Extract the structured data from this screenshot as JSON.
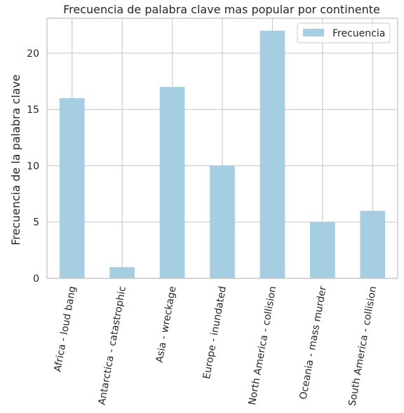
{
  "chart_data": {
    "type": "bar",
    "title": "Frecuencia de palabra clave mas popular por continente",
    "xlabel": "",
    "ylabel": "Frecuencia de la palabra clave",
    "categories": [
      "Africa - loud bang",
      "Antarctica - catastrophic",
      "Asia - wreckage",
      "Europe - inundated",
      "North America - collision",
      "Oceania - mass murder",
      "South America - collision"
    ],
    "series": [
      {
        "name": "Frecuencia",
        "values": [
          16,
          1,
          17,
          10,
          22,
          5,
          6
        ]
      }
    ],
    "ylim": [
      0,
      23.1
    ],
    "yticks": [
      0,
      5,
      10,
      15,
      20
    ],
    "grid": true,
    "legend_position": "top-right",
    "colors": {
      "bar": "#a6cee3",
      "grid": "#cccccc",
      "axis": "#cccccc",
      "text": "#262626"
    }
  }
}
